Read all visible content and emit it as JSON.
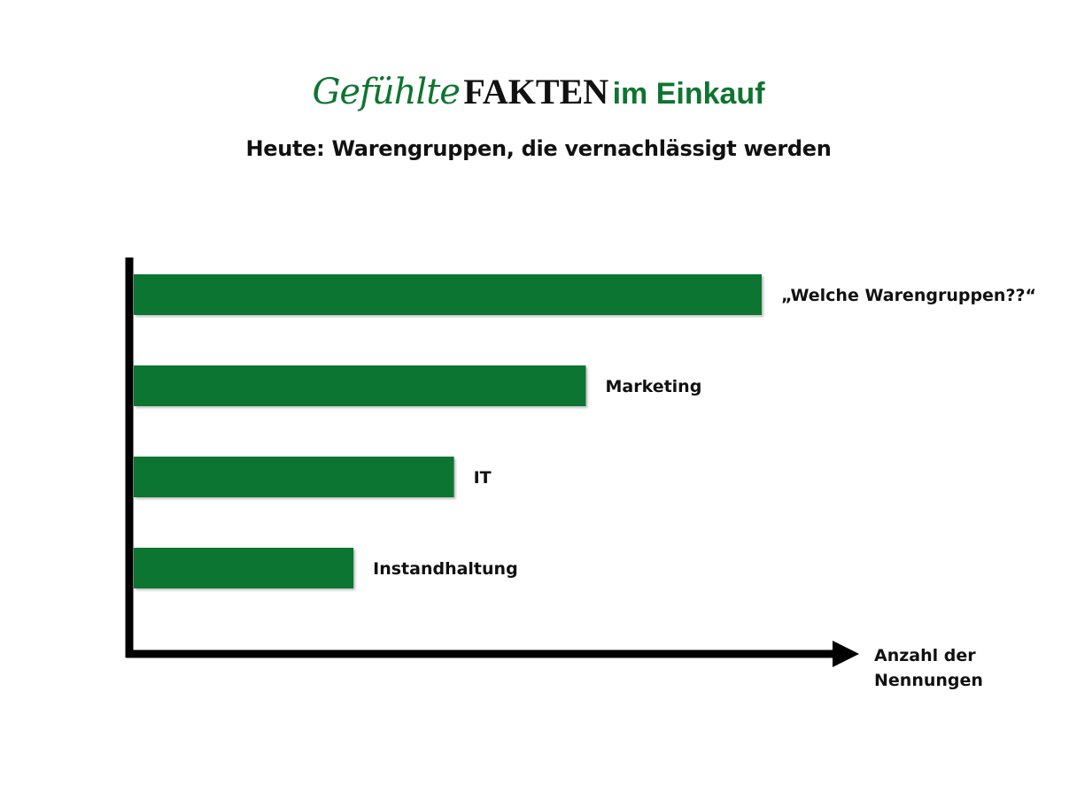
{
  "header": {
    "logo_part1": "Gefühlte",
    "logo_part2": "FAKTEN",
    "logo_part3": "im Einkauf",
    "subtitle": "Heute: Warengruppen, die vernachlässigt werden"
  },
  "chart_data": {
    "type": "bar",
    "orientation": "horizontal",
    "categories": [
      "„Welche Warengruppen??“",
      "Marketing",
      "IT",
      "Instandhaltung"
    ],
    "values": [
      100,
      72,
      51,
      35
    ],
    "xlabel_lines": [
      "Anzahl der",
      "Nennungen"
    ],
    "ylabel": "",
    "xlim": [
      0,
      115
    ],
    "grid": false,
    "legend": "none",
    "colors": {
      "bar": "#0e7530",
      "axis": "#000000"
    }
  }
}
